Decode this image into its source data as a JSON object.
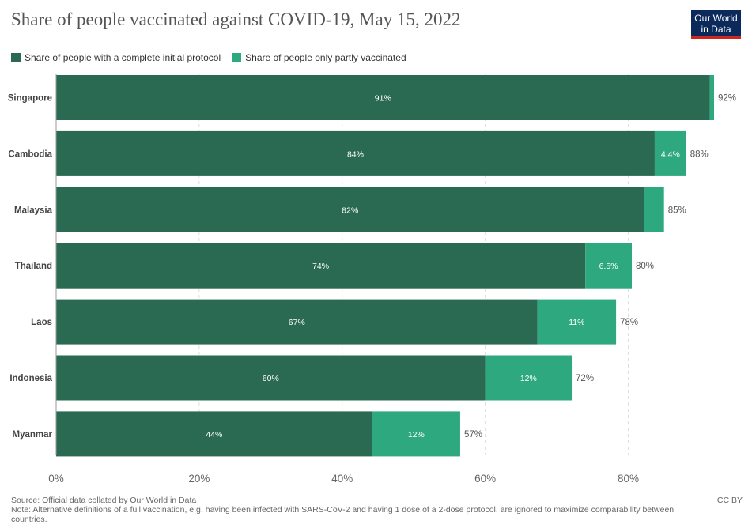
{
  "header": {
    "title": "Share of people vaccinated against COVID-19, May 15, 2022",
    "logo_line1": "Our World",
    "logo_line2": "in Data"
  },
  "footer": {
    "source": "Source: Official data collated by Our World in Data",
    "note": "Note: Alternative definitions of a full vaccination, e.g. having been infected with SARS-CoV-2 and having 1 dose of a 2-dose protocol, are ignored to maximize comparability between countries.",
    "license": "CC BY"
  },
  "chart_data": {
    "type": "bar",
    "orientation": "horizontal",
    "stacked": true,
    "categories": [
      "Singapore",
      "Cambodia",
      "Malaysia",
      "Thailand",
      "Laos",
      "Indonesia",
      "Myanmar"
    ],
    "series": [
      {
        "name": "Share of people with a complete initial protocol",
        "color": "#2a6a52",
        "values": [
          91.4,
          83.7,
          82.2,
          74.0,
          67.3,
          60.0,
          44.2
        ],
        "labels": [
          "91%",
          "84%",
          "82%",
          "74%",
          "67%",
          "60%",
          "44%"
        ]
      },
      {
        "name": "Share of people only partly vaccinated",
        "color": "#2ea87e",
        "values": [
          0.6,
          4.4,
          2.8,
          6.5,
          11.0,
          12.1,
          12.3
        ],
        "labels": [
          "",
          "4.4%",
          "",
          "6.5%",
          "11%",
          "12%",
          "12%"
        ]
      }
    ],
    "totals": [
      "92%",
      "88%",
      "85%",
      "80%",
      "78%",
      "72%",
      "57%"
    ],
    "x_ticks": [
      0,
      20,
      40,
      60,
      80
    ],
    "x_tick_labels": [
      "0%",
      "20%",
      "40%",
      "60%",
      "80%"
    ],
    "xlim": [
      0,
      92
    ],
    "grid": "vertical-dashed",
    "legend_position": "top-left"
  }
}
